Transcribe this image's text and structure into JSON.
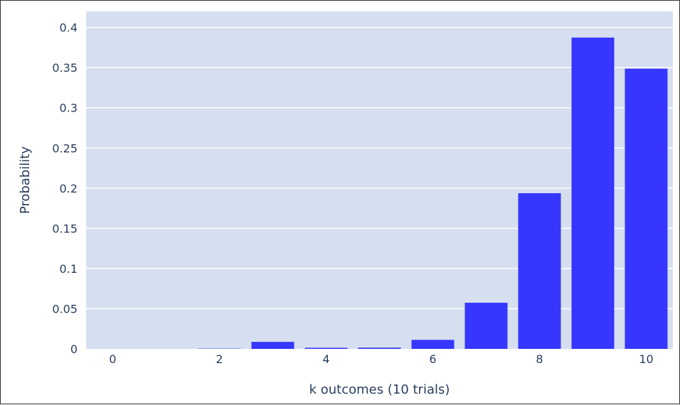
{
  "chart_data": {
    "type": "bar",
    "xlabel": "k outcomes (10 trials)",
    "ylabel": "Probability",
    "x": [
      0,
      1,
      2,
      3,
      4,
      5,
      6,
      7,
      8,
      9,
      10
    ],
    "values": [
      1e-07,
      9e-06,
      0.00036,
      0.0087,
      0.00137,
      0.0015,
      0.0112,
      0.0574,
      0.1937,
      0.3874,
      0.3487
    ],
    "xlim": [
      -0.5,
      10.5
    ],
    "ylim": [
      0,
      0.42
    ],
    "xticks": [
      0,
      2,
      4,
      6,
      8,
      10
    ],
    "xtick_labels": [
      "0",
      "2",
      "4",
      "6",
      "8",
      "10"
    ],
    "yticks": [
      0,
      0.05,
      0.1,
      0.15,
      0.2,
      0.25,
      0.3,
      0.35,
      0.4
    ],
    "ytick_labels": [
      "0",
      "0.05",
      "0.1",
      "0.15",
      "0.2",
      "0.25",
      "0.3",
      "0.35",
      "0.4"
    ],
    "grid": true,
    "colors": {
      "bar": "#3636ff",
      "plot_bg": "#d6dff0",
      "grid": "#ffffff",
      "text": "#2a3f5f"
    }
  }
}
